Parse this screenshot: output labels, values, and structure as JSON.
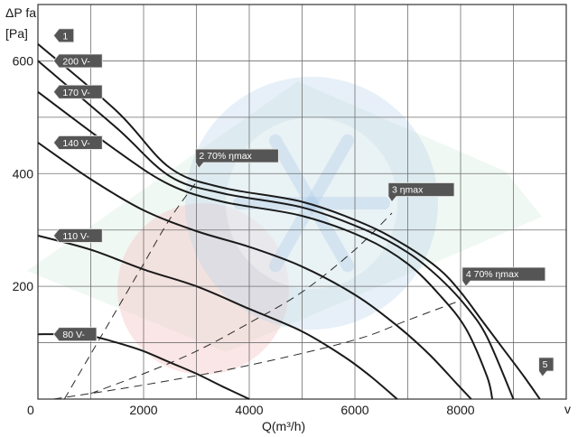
{
  "chart_data": {
    "type": "line",
    "ylabel": "ΔP fa",
    "yunit": "[Pa]",
    "xlabel": "Q(m³/h)",
    "xlabel_right": "v",
    "xlim": [
      0,
      10000
    ],
    "ylim": [
      0,
      700
    ],
    "xticks": [
      0,
      2000,
      4000,
      6000,
      8000
    ],
    "xtick_labels": [
      "0",
      "2000",
      "4000",
      "6000",
      "8000"
    ],
    "yticks": [
      200,
      400,
      600
    ],
    "ytick_labels": [
      "200",
      "400",
      "600"
    ],
    "grid": true,
    "colors": {
      "curve": "#1a1a1a",
      "grid": "#6f6f6f",
      "tag": "#555555",
      "watermark_blue": "#b9d3ea",
      "watermark_red": "#f3c7c7",
      "watermark_green": "#d4eadc"
    },
    "series": [
      {
        "name": "1",
        "x": [
          0,
          1500,
          2500,
          3500,
          5000,
          6200,
          7000,
          7600,
          8000,
          8400,
          8800,
          9200,
          9500
        ],
        "y": [
          630,
          510,
          410,
          375,
          350,
          310,
          270,
          230,
          190,
          140,
          90,
          40,
          0
        ]
      },
      {
        "name": "200 V-",
        "x": [
          0,
          1500,
          2500,
          3500,
          5000,
          6200,
          7000,
          7600,
          8100,
          8500,
          9000
        ],
        "y": [
          600,
          480,
          395,
          365,
          340,
          300,
          260,
          215,
          165,
          110,
          0
        ]
      },
      {
        "name": "170 V-",
        "x": [
          0,
          1500,
          2500,
          3500,
          5000,
          6200,
          7000,
          7600,
          8100,
          8500,
          8600
        ],
        "y": [
          545,
          440,
          380,
          350,
          325,
          285,
          240,
          185,
          125,
          40,
          0
        ]
      },
      {
        "name": "140 V-",
        "x": [
          0,
          1000,
          2000,
          3000,
          4000,
          5000,
          6000,
          6800,
          7400,
          7900,
          8200
        ],
        "y": [
          455,
          390,
          335,
          298,
          270,
          235,
          185,
          130,
          80,
          30,
          0
        ]
      },
      {
        "name": "110 V-",
        "x": [
          0,
          1000,
          2000,
          3000,
          4000,
          5000,
          5800,
          6300,
          6800
        ],
        "y": [
          290,
          265,
          230,
          200,
          160,
          120,
          75,
          40,
          0
        ]
      },
      {
        "name": "80 V-",
        "x": [
          0,
          500,
          1000,
          1500,
          2000,
          2500,
          3000,
          3500,
          4000
        ],
        "y": [
          115,
          115,
          112,
          100,
          85,
          65,
          45,
          22,
          0
        ]
      }
    ],
    "efficiency_lines": [
      {
        "name": "2",
        "label": "70% ηmax",
        "x": [
          500,
          1000,
          1500,
          2000,
          2500,
          3000
        ],
        "y": [
          0,
          80,
          160,
          240,
          320,
          385
        ]
      },
      {
        "name": "3",
        "label": "ηmax",
        "x": [
          1000,
          2000,
          3000,
          4000,
          5000,
          6000,
          6700
        ],
        "y": [
          10,
          45,
          85,
          135,
          190,
          265,
          330
        ]
      },
      {
        "name": "4",
        "label": "70% ηmax",
        "x": [
          300,
          2000,
          4000,
          6000,
          7000,
          8000
        ],
        "y": [
          0,
          25,
          60,
          105,
          140,
          175
        ]
      }
    ],
    "tags": [
      {
        "id": "1",
        "text": "1",
        "side": "left",
        "x": 400,
        "y": 645
      },
      {
        "id": "200v",
        "text": "200 V-",
        "side": "left",
        "x": 400,
        "y": 600
      },
      {
        "id": "170v",
        "text": "170 V-",
        "side": "left",
        "x": 400,
        "y": 545
      },
      {
        "id": "140v",
        "text": "140 V-",
        "side": "left",
        "x": 400,
        "y": 455
      },
      {
        "id": "110v",
        "text": "110 V-",
        "side": "left",
        "x": 400,
        "y": 290
      },
      {
        "id": "80v",
        "text": "80 V-",
        "side": "left",
        "x": 400,
        "y": 115
      },
      {
        "id": "eff2",
        "text": "2    70% ηmax",
        "side": "down",
        "x": 3050,
        "y": 410
      },
      {
        "id": "eff3",
        "text": "3     ηmax",
        "side": "down",
        "x": 6700,
        "y": 350
      },
      {
        "id": "eff4",
        "text": "4    70% ηmax",
        "side": "down",
        "x": 8100,
        "y": 200
      },
      {
        "id": "5",
        "text": "5",
        "side": "down",
        "x": 9550,
        "y": 40
      }
    ]
  }
}
